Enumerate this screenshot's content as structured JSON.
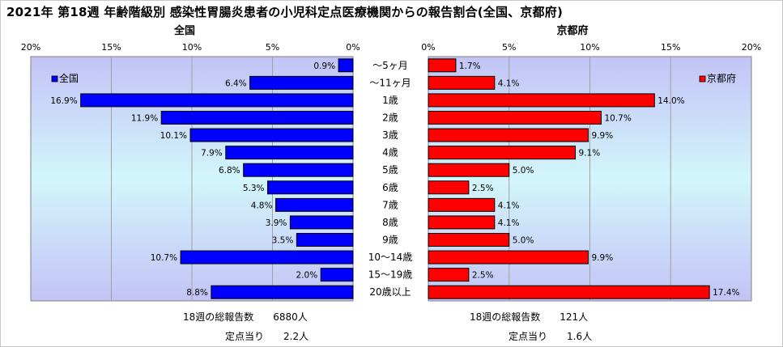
{
  "chart_data": [
    {
      "type": "bar",
      "orientation": "horizontal",
      "direction": "right-to-left",
      "title": "全国",
      "legend": "全国",
      "legend_position": "top-left",
      "color": "#0000ff",
      "xlim": [
        0,
        20
      ],
      "ticks": [
        "20%",
        "15%",
        "10%",
        "5%",
        "0%"
      ],
      "categories": [
        "～5ヶ月",
        "～11ヶ月",
        "1歳",
        "2歳",
        "3歳",
        "4歳",
        "5歳",
        "6歳",
        "7歳",
        "8歳",
        "9歳",
        "10～14歳",
        "15～19歳",
        "20歳以上"
      ],
      "values": [
        0.9,
        6.4,
        16.9,
        11.9,
        10.1,
        7.9,
        6.8,
        5.3,
        4.8,
        3.9,
        3.5,
        10.7,
        2.0,
        8.8
      ],
      "labels": [
        "0.9%",
        "6.4%",
        "16.9%",
        "11.9%",
        "10.1%",
        "7.9%",
        "6.8%",
        "5.3%",
        "4.8%",
        "3.9%",
        "3.5%",
        "10.7%",
        "2.0%",
        "8.8%"
      ],
      "grid": true
    },
    {
      "type": "bar",
      "orientation": "horizontal",
      "direction": "left-to-right",
      "title": "京都府",
      "legend": "京都府",
      "legend_position": "top-right",
      "color": "#ff0000",
      "xlim": [
        0,
        20
      ],
      "ticks": [
        "0%",
        "5%",
        "10%",
        "15%",
        "20%"
      ],
      "categories": [
        "～5ヶ月",
        "～11ヶ月",
        "1歳",
        "2歳",
        "3歳",
        "4歳",
        "5歳",
        "6歳",
        "7歳",
        "8歳",
        "9歳",
        "10～14歳",
        "15～19歳",
        "20歳以上"
      ],
      "values": [
        1.7,
        4.1,
        14.0,
        10.7,
        9.9,
        9.1,
        5.0,
        2.5,
        4.1,
        4.1,
        5.0,
        9.9,
        2.5,
        17.4
      ],
      "labels": [
        "1.7%",
        "4.1%",
        "14.0%",
        "10.7%",
        "9.9%",
        "9.1%",
        "5.0%",
        "2.5%",
        "4.1%",
        "4.1%",
        "5.0%",
        "9.9%",
        "2.5%",
        "17.4%"
      ],
      "grid": true
    }
  ],
  "title": "2021年 第18週 年齢階級別 感染性胃腸炎患者の小児科定点医療機関からの報告割合(全国、京都府)",
  "summary": {
    "national_total": "18週の総報告数　　6880人",
    "national_per_site": "定点当り　　2.2人",
    "kyoto_total": "18週の総報告数　　121人",
    "kyoto_per_site": "定点当り　　1.6人"
  }
}
